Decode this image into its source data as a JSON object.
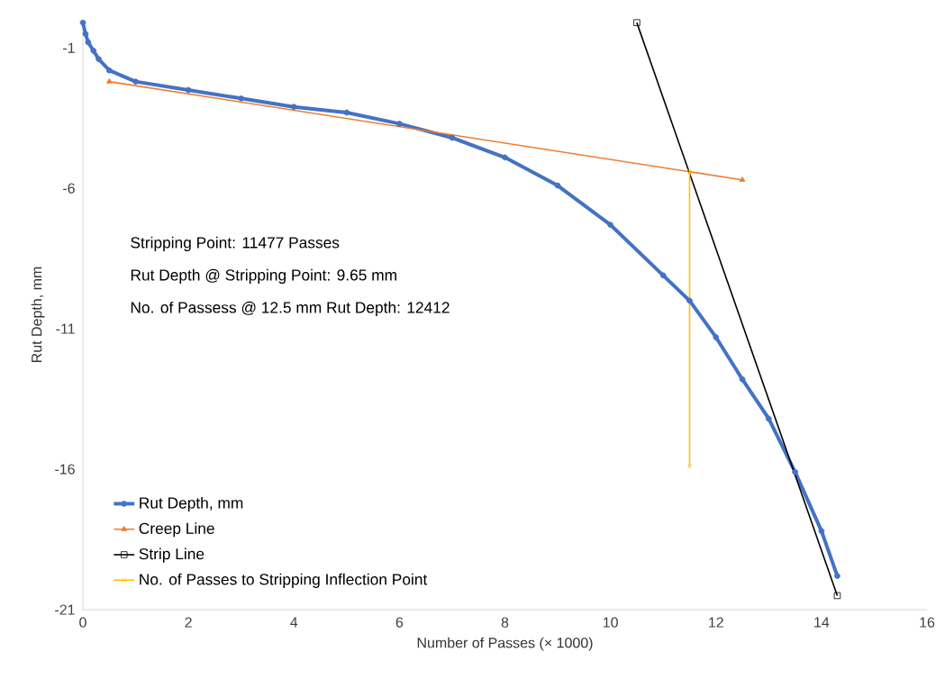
{
  "chart_data": {
    "type": "line",
    "xlabel": "Number of Passes (× 1000)",
    "ylabel": "Rut Depth, mm",
    "xlim": [
      0,
      16
    ],
    "xticks": [
      0,
      2,
      4,
      6,
      8,
      10,
      12,
      14,
      16
    ],
    "ylim": [
      -21,
      0
    ],
    "yticks": [
      -21,
      -16,
      -11,
      -6,
      -1
    ],
    "grid": false,
    "legend": "bottom left",
    "annotations": [
      "Stripping Point: 11477 Passes",
      "Rut Depth @ Stripping Point: 9.65 mm",
      "No. of Passess @ 12.5 mm Rut Depth: 12412"
    ],
    "series": [
      {
        "name": "Rut Depth, mm",
        "color": "#4472c4",
        "marker": "circle",
        "x": [
          0,
          0.05,
          0.1,
          0.2,
          0.3,
          0.5,
          1,
          2,
          3,
          4,
          5,
          6,
          7,
          8,
          9,
          10,
          11,
          11.5,
          12,
          12.5,
          13,
          13.5,
          14,
          14.3
        ],
        "values": [
          -0.1,
          -0.5,
          -0.8,
          -1.1,
          -1.4,
          -1.8,
          -2.2,
          -2.5,
          -2.8,
          -3.1,
          -3.3,
          -3.7,
          -4.2,
          -4.9,
          -5.9,
          -7.3,
          -9.1,
          -10,
          -11.3,
          -12.8,
          -14.2,
          -16.1,
          -18.2,
          -19.8
        ]
      },
      {
        "name": "Creep Line",
        "color": "#ed7d31",
        "marker": "triangle",
        "x": [
          0.5,
          12.5
        ],
        "values": [
          -2.2,
          -5.7
        ]
      },
      {
        "name": "Strip Line",
        "color": "#000000",
        "marker": "square",
        "x": [
          10.5,
          14.3
        ],
        "values": [
          -0.1,
          -20.5
        ]
      },
      {
        "name": "No. of Passes to Stripping Inflection Point",
        "color": "#ffc000",
        "marker": "cross",
        "x": [
          11.5,
          11.5
        ],
        "values": [
          -5.4,
          -15.9
        ]
      }
    ]
  }
}
